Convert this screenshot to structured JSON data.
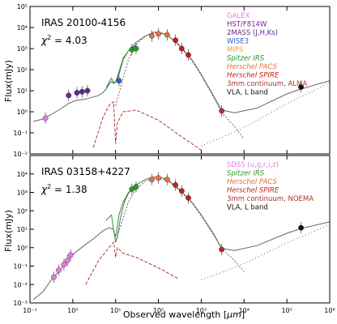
{
  "figure": {
    "xlabel": "Observed wavelength [",
    "xlabel_unit": "μm",
    "xlabel_end": "]",
    "ylabel": "Flux(mJy)"
  },
  "chart_data": [
    {
      "type": "scatter",
      "title": "IRAS 20100-4156",
      "chi2_label": "χ",
      "chi2_value": "= 4.03",
      "xlim": [
        0.1,
        1000000
      ],
      "ylim": [
        0.01,
        100000
      ],
      "xscale": "log",
      "yscale": "log",
      "x_ticks": [
        "10⁻¹",
        "10⁰",
        "10¹",
        "10²",
        "10³",
        "10⁴",
        "10⁵",
        "10⁶"
      ],
      "y_ticks": [
        "10⁻²",
        "10⁻¹",
        "10⁰",
        "10¹",
        "10²",
        "10³",
        "10⁴",
        "10⁵"
      ],
      "legend_position": "top-right",
      "legend": [
        {
          "label": "GALEX",
          "color": "#e879e8",
          "italic": false
        },
        {
          "label": "HST/F814W",
          "color": "#7a1fa2",
          "italic": false
        },
        {
          "label": "2MASS (J,H,Ks)",
          "color": "#5b2a8c",
          "italic": false
        },
        {
          "label": "WISE3",
          "color": "#2f5fd0",
          "italic": false
        },
        {
          "label": "MIPS",
          "color": "#f0a020",
          "italic": false
        },
        {
          "label": "Spitzer IRS",
          "color": "#2a9a2a",
          "italic": true
        },
        {
          "label": "Herschel PACS",
          "color": "#e8703a",
          "italic": true
        },
        {
          "label": "Herschel SPIRE",
          "color": "#c41e1e",
          "italic": true
        },
        {
          "label": "3mm continuum, ALMA",
          "color": "#b03030",
          "italic": false
        },
        {
          "label": "VLA, L band",
          "color": "#111111",
          "italic": false
        }
      ],
      "points": [
        {
          "x": 0.23,
          "y": 0.5,
          "color": "#e879e8"
        },
        {
          "x": 0.8,
          "y": 6.0,
          "color": "#7a1fa2"
        },
        {
          "x": 1.25,
          "y": 8.0,
          "color": "#5b2a8c"
        },
        {
          "x": 1.65,
          "y": 9.0,
          "color": "#5b2a8c"
        },
        {
          "x": 2.2,
          "y": 10.0,
          "color": "#5b2a8c"
        },
        {
          "x": 12.0,
          "y": 30.0,
          "color": "#2f5fd0"
        },
        {
          "x": 24.0,
          "y": 900.0,
          "color": "#2a9a2a"
        },
        {
          "x": 30.0,
          "y": 1000.0,
          "color": "#2a9a2a"
        },
        {
          "x": 70.0,
          "y": 4000.0,
          "color": "#e8703a"
        },
        {
          "x": 100.0,
          "y": 5000.0,
          "color": "#e8703a"
        },
        {
          "x": 160.0,
          "y": 4500.0,
          "color": "#e8703a"
        },
        {
          "x": 250.0,
          "y": 2500.0,
          "color": "#c41e1e"
        },
        {
          "x": 350.0,
          "y": 1000.0,
          "color": "#c41e1e"
        },
        {
          "x": 500.0,
          "y": 500.0,
          "color": "#c41e1e"
        },
        {
          "x": 3000.0,
          "y": 1.1,
          "color": "#b03030"
        },
        {
          "x": 214000.0,
          "y": 15.0,
          "color": "#111111"
        }
      ]
    },
    {
      "type": "scatter",
      "title": "IRAS 03158+4227",
      "chi2_label": "χ",
      "chi2_value": "= 1.38",
      "xlim": [
        0.1,
        1000000
      ],
      "ylim": [
        0.001,
        100000
      ],
      "xscale": "log",
      "yscale": "log",
      "x_ticks": [
        "10⁻¹",
        "10⁰",
        "10¹",
        "10²",
        "10³",
        "10⁴",
        "10⁵",
        "10⁶"
      ],
      "y_ticks": [
        "10⁻³",
        "10⁻²",
        "10⁻¹",
        "10⁰",
        "10¹",
        "10²",
        "10³",
        "10⁴"
      ],
      "legend_position": "top-right",
      "legend": [
        {
          "label": "SDSS (u,g,r,i,z)",
          "color": "#e879e8",
          "italic": false
        },
        {
          "label": "Spitzer IRS",
          "color": "#2a9a2a",
          "italic": true
        },
        {
          "label": "Herschel PACS",
          "color": "#e8703a",
          "italic": true
        },
        {
          "label": "Herschel SPIRE",
          "color": "#c41e1e",
          "italic": true
        },
        {
          "label": "3mm continuum, NOEMA",
          "color": "#b03030",
          "italic": false
        },
        {
          "label": "VLA, L band",
          "color": "#111111",
          "italic": false
        }
      ],
      "points": [
        {
          "x": 0.36,
          "y": 0.025,
          "color": "#e879e8"
        },
        {
          "x": 0.47,
          "y": 0.06,
          "color": "#e879e8"
        },
        {
          "x": 0.62,
          "y": 0.12,
          "color": "#e879e8"
        },
        {
          "x": 0.75,
          "y": 0.2,
          "color": "#e879e8"
        },
        {
          "x": 0.89,
          "y": 0.4,
          "color": "#e879e8"
        },
        {
          "x": 24.0,
          "y": 1500.0,
          "color": "#2a9a2a"
        },
        {
          "x": 30.0,
          "y": 2000.0,
          "color": "#2a9a2a"
        },
        {
          "x": 70.0,
          "y": 5000.0,
          "color": "#e8703a"
        },
        {
          "x": 100.0,
          "y": 6000.0,
          "color": "#e8703a"
        },
        {
          "x": 160.0,
          "y": 5000.0,
          "color": "#e8703a"
        },
        {
          "x": 250.0,
          "y": 2500.0,
          "color": "#c41e1e"
        },
        {
          "x": 350.0,
          "y": 1200.0,
          "color": "#c41e1e"
        },
        {
          "x": 500.0,
          "y": 500.0,
          "color": "#c41e1e"
        },
        {
          "x": 3000.0,
          "y": 0.8,
          "color": "#b03030"
        },
        {
          "x": 214000.0,
          "y": 12.0,
          "color": "#111111"
        }
      ]
    }
  ]
}
